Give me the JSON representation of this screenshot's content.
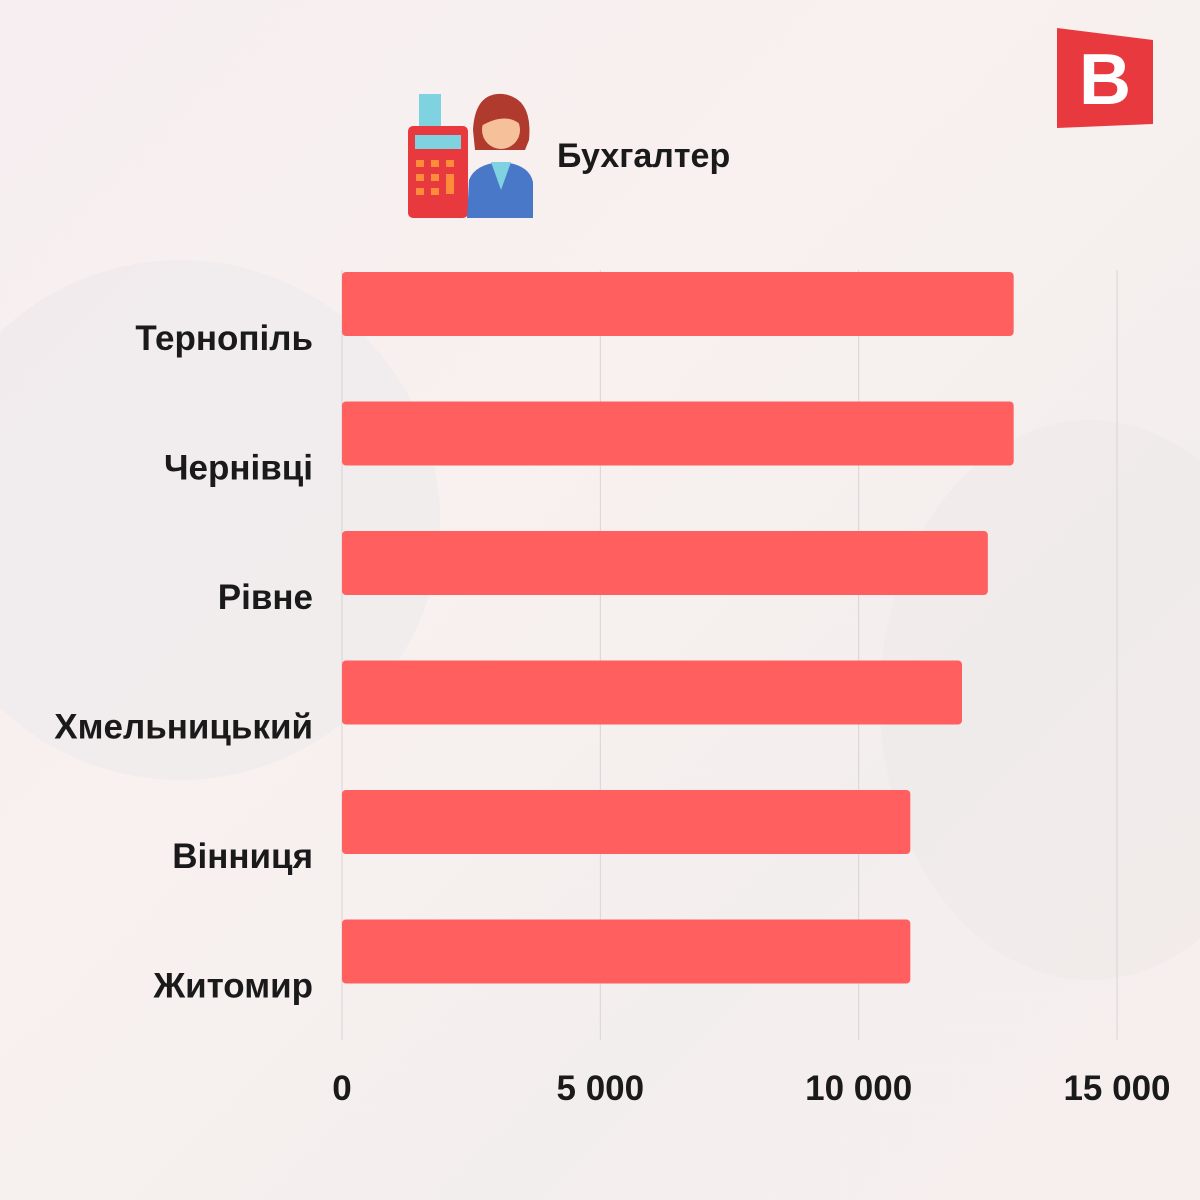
{
  "header": {
    "title": "Бухгалтер",
    "icon": "accountant-calculator-icon",
    "logo_letter": "B"
  },
  "colors": {
    "bar": "#ff5f5f",
    "logo": "#e8393f",
    "grid": "#d9d4d4"
  },
  "chart_data": {
    "type": "bar",
    "orientation": "horizontal",
    "title": "Бухгалтер",
    "categories": [
      "Тернопіль",
      "Чернівці",
      "Рівне",
      "Хмельницький",
      "Вінниця",
      "Житомир"
    ],
    "values": [
      13000,
      13000,
      12500,
      12000,
      11000,
      11000
    ],
    "xlim": [
      0,
      15000
    ],
    "xticks": [
      0,
      5000,
      10000,
      15000
    ],
    "xtick_labels": [
      "0",
      "5 000",
      "10 000",
      "15 000"
    ],
    "grid": true,
    "xlabel": "",
    "ylabel": ""
  }
}
